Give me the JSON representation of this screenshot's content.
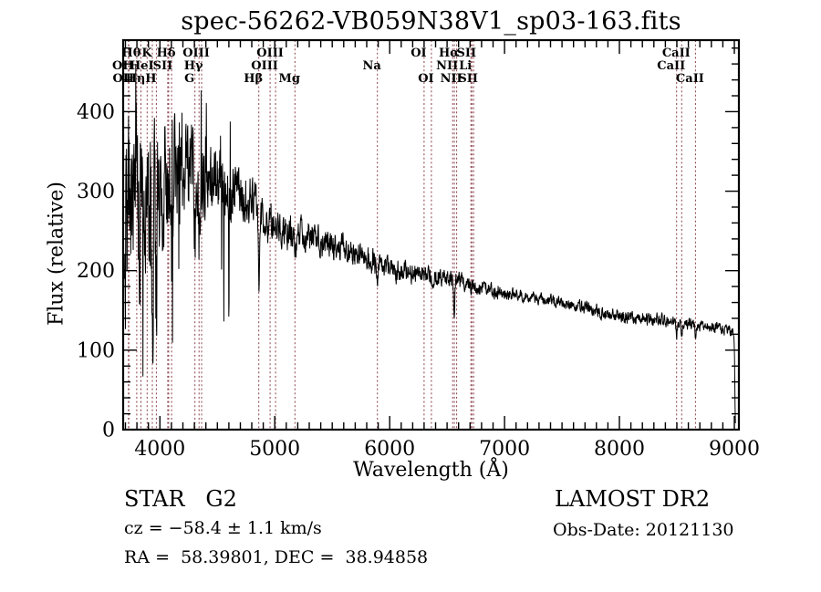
{
  "title": "spec-56262-VB059N38V1_sp03-163.fits",
  "axes": {
    "xlabel": "Wavelength (Å)",
    "ylabel": "Flux (relative)"
  },
  "footer": {
    "left": {
      "class_label": "STAR   G2",
      "cz": "cz = −58.4 ± 1.1 km/s",
      "radec": "RA =  58.39801, DEC =  38.94858"
    },
    "right": {
      "survey": "LAMOST DR2",
      "obs_date": "Obs-Date: 20121130"
    }
  },
  "colors": {
    "background": "#ffffff",
    "frame": "#000000",
    "spectrum": "#000000",
    "marker_line": "#8b4049",
    "text": "#000000"
  },
  "chart_data": {
    "type": "line",
    "title": "spec-56262-VB059N38V1_sp03-163.fits",
    "xlabel": "Wavelength (Å)",
    "ylabel": "Flux (relative)",
    "xlim": [
      3680,
      9040
    ],
    "ylim": [
      0,
      490
    ],
    "xticks": [
      4000,
      5000,
      6000,
      7000,
      8000,
      9000
    ],
    "yticks": [
      0,
      100,
      200,
      300,
      400
    ],
    "x_minor_step": 100,
    "y_minor_step": 20,
    "grid": false,
    "legend": false,
    "continuum_points": [
      [
        3690,
        250
      ],
      [
        3800,
        285
      ],
      [
        3900,
        295
      ],
      [
        4000,
        305
      ],
      [
        4100,
        320
      ],
      [
        4250,
        330
      ],
      [
        4400,
        315
      ],
      [
        4600,
        300
      ],
      [
        4800,
        288
      ],
      [
        5000,
        252
      ],
      [
        5200,
        248
      ],
      [
        5400,
        238
      ],
      [
        5600,
        230
      ],
      [
        5800,
        215
      ],
      [
        6000,
        202
      ],
      [
        6200,
        198
      ],
      [
        6400,
        192
      ],
      [
        6600,
        186
      ],
      [
        6800,
        180
      ],
      [
        7000,
        170
      ],
      [
        7200,
        167
      ],
      [
        7400,
        162
      ],
      [
        7600,
        156
      ],
      [
        7800,
        150
      ],
      [
        8000,
        142
      ],
      [
        8200,
        140
      ],
      [
        8400,
        136
      ],
      [
        8600,
        133
      ],
      [
        8800,
        130
      ],
      [
        8995,
        122
      ],
      [
        9002,
        95
      ],
      [
        9006,
        40
      ],
      [
        9010,
        4
      ]
    ],
    "noise_amplitude": [
      [
        3690,
        110
      ],
      [
        3950,
        75
      ],
      [
        4400,
        40
      ],
      [
        4800,
        22
      ],
      [
        5600,
        14
      ],
      [
        6300,
        11
      ],
      [
        7200,
        6
      ],
      [
        8300,
        7
      ],
      [
        9000,
        5
      ]
    ],
    "absorption_features": [
      [
        3934,
        150,
        7
      ],
      [
        3969,
        140,
        7
      ],
      [
        4102,
        100,
        6
      ],
      [
        4305,
        70,
        9
      ],
      [
        4341,
        80,
        6
      ],
      [
        4861,
        95,
        5
      ],
      [
        5175,
        28,
        11
      ],
      [
        5893,
        26,
        7
      ],
      [
        6563,
        38,
        5
      ],
      [
        8498,
        14,
        5
      ],
      [
        8542,
        18,
        5
      ],
      [
        8662,
        15,
        5
      ]
    ],
    "marker_lines": [
      3726,
      3729,
      3798,
      3835,
      3889,
      3934,
      3969,
      4068,
      4076,
      4102,
      4305,
      4341,
      4363,
      4861,
      4959,
      5007,
      5175,
      5893,
      6300,
      6363,
      6548,
      6563,
      6583,
      6707,
      6716,
      6731,
      8498,
      8542,
      8662
    ],
    "line_labels": [
      {
        "text": "Hθ",
        "wl": 3798,
        "row": 1
      },
      {
        "text": "K",
        "wl": 3934,
        "row": 1
      },
      {
        "text": "Hδ",
        "wl": 4102,
        "row": 1
      },
      {
        "text": "OIII",
        "wl": 4363,
        "row": 1
      },
      {
        "text": "OIII",
        "wl": 5007,
        "row": 1
      },
      {
        "text": "OI",
        "wl": 6300,
        "row": 1
      },
      {
        "text": "Hα",
        "wl": 6563,
        "row": 1
      },
      {
        "text": "SII",
        "wl": 6716,
        "row": 1
      },
      {
        "text": "CaII",
        "wl": 8542,
        "row": 1
      },
      {
        "text": "OII",
        "wl": 3726,
        "row": 2
      },
      {
        "text": "HeI",
        "wl": 3889,
        "row": 2
      },
      {
        "text": "SII",
        "wl": 4072,
        "row": 2
      },
      {
        "text": "Hγ",
        "wl": 4341,
        "row": 2
      },
      {
        "text": "OIII",
        "wl": 4959,
        "row": 2
      },
      {
        "text": "Na",
        "wl": 5893,
        "row": 2
      },
      {
        "text": "NII",
        "wl": 6548,
        "row": 2
      },
      {
        "text": "Li",
        "wl": 6707,
        "row": 2
      },
      {
        "text": "CaII",
        "wl": 8498,
        "row": 2
      },
      {
        "text": "OII",
        "wl": 3729,
        "row": 3
      },
      {
        "text": "Hη",
        "wl": 3835,
        "row": 3
      },
      {
        "text": "H",
        "wl": 3969,
        "row": 3
      },
      {
        "text": "G",
        "wl": 4305,
        "row": 3
      },
      {
        "text": "Hβ",
        "wl": 4861,
        "row": 3
      },
      {
        "text": "Mg",
        "wl": 5175,
        "row": 3
      },
      {
        "text": "OI",
        "wl": 6363,
        "row": 3
      },
      {
        "text": "NII",
        "wl": 6583,
        "row": 3
      },
      {
        "text": "SII",
        "wl": 6731,
        "row": 3
      },
      {
        "text": "CaII",
        "wl": 8662,
        "row": 3
      }
    ]
  }
}
